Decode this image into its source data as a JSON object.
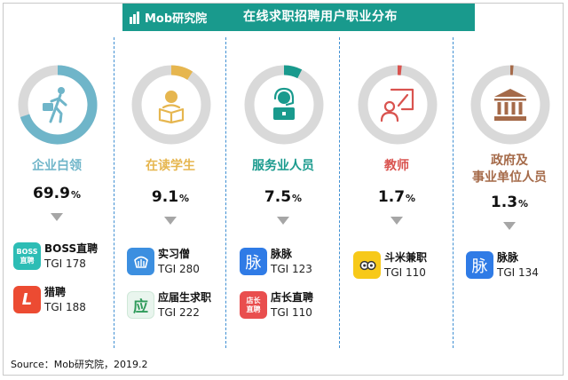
{
  "header": {
    "logo_text": "Mob研究院",
    "title": "在线求职招聘用户职业分布"
  },
  "colors": {
    "header_bg": "#199a8d",
    "ring_bg": "#d9d9d9",
    "divider": "#3f8fd2",
    "triangle": "#a6a6a6"
  },
  "chart_data": {
    "type": "pie",
    "title": "在线求职招聘用户职业分布",
    "unit": "%",
    "categories": [
      "企业白领",
      "在读学生",
      "服务业人员",
      "教师",
      "政府及事业单位人员"
    ],
    "values": [
      69.9,
      9.1,
      7.5,
      1.7,
      1.3
    ],
    "groups": [
      {
        "category": "企业白领",
        "value_label": "69.9",
        "pct_sign": "%",
        "color": "#6fb5c9",
        "icon": "office-worker-icon",
        "apps": [
          {
            "name": "BOSS直聘",
            "tgi_label": "TGI 178",
            "tgi": 178,
            "icon": "boss-zhipin-app-icon",
            "icon_text": "BOSS\n直聘",
            "icon_color": "#2dbdb5"
          },
          {
            "name": "猎聘",
            "tgi_label": "TGI 188",
            "tgi": 188,
            "icon": "liepin-app-icon",
            "icon_text": "L",
            "icon_color": "#ec4b32"
          }
        ]
      },
      {
        "category": "在读学生",
        "value_label": "9.1",
        "pct_sign": "%",
        "color": "#e6b64f",
        "icon": "student-reading-icon",
        "apps": [
          {
            "name": "实习僧",
            "tgi_label": "TGI 280",
            "tgi": 280,
            "icon": "shixiseng-app-icon",
            "icon_text": "",
            "icon_color": "#3c8fe0"
          },
          {
            "name": "应届生求职",
            "tgi_label": "TGI 222",
            "tgi": 222,
            "icon": "yingjiesheng-app-icon",
            "icon_text": "应",
            "icon_color": "#e9f5ee"
          }
        ]
      },
      {
        "category": "服务业人员",
        "value_label": "7.5",
        "pct_sign": "%",
        "color": "#199a8d",
        "icon": "service-agent-icon",
        "apps": [
          {
            "name": "脉脉",
            "tgi_label": "TGI 123",
            "tgi": 123,
            "icon": "maimai-app-icon",
            "icon_text": "脉",
            "icon_color": "#2f7be6"
          },
          {
            "name": "店长直聘",
            "tgi_label": "TGI 110",
            "tgi": 110,
            "icon": "dianzhang-app-icon",
            "icon_text": "店长\n直聘",
            "icon_color": "#e94e4e"
          }
        ]
      },
      {
        "category": "教师",
        "value_label": "1.7",
        "pct_sign": "%",
        "color": "#d9534f",
        "icon": "teacher-board-icon",
        "apps": [
          {
            "name": "斗米兼职",
            "tgi_label": "TGI 110",
            "tgi": 110,
            "icon": "doumi-app-icon",
            "icon_text": "",
            "icon_color": "#f7c919"
          }
        ]
      },
      {
        "category": "政府及\n事业单位人员",
        "value_label": "1.3",
        "pct_sign": "%",
        "color": "#a56a49",
        "icon": "government-building-icon",
        "apps": [
          {
            "name": "脉脉",
            "tgi_label": "TGI 134",
            "tgi": 134,
            "icon": "maimai-app-icon",
            "icon_text": "脉",
            "icon_color": "#2f7be6"
          }
        ]
      }
    ]
  },
  "source": "Source：Mob研究院，2019.2"
}
